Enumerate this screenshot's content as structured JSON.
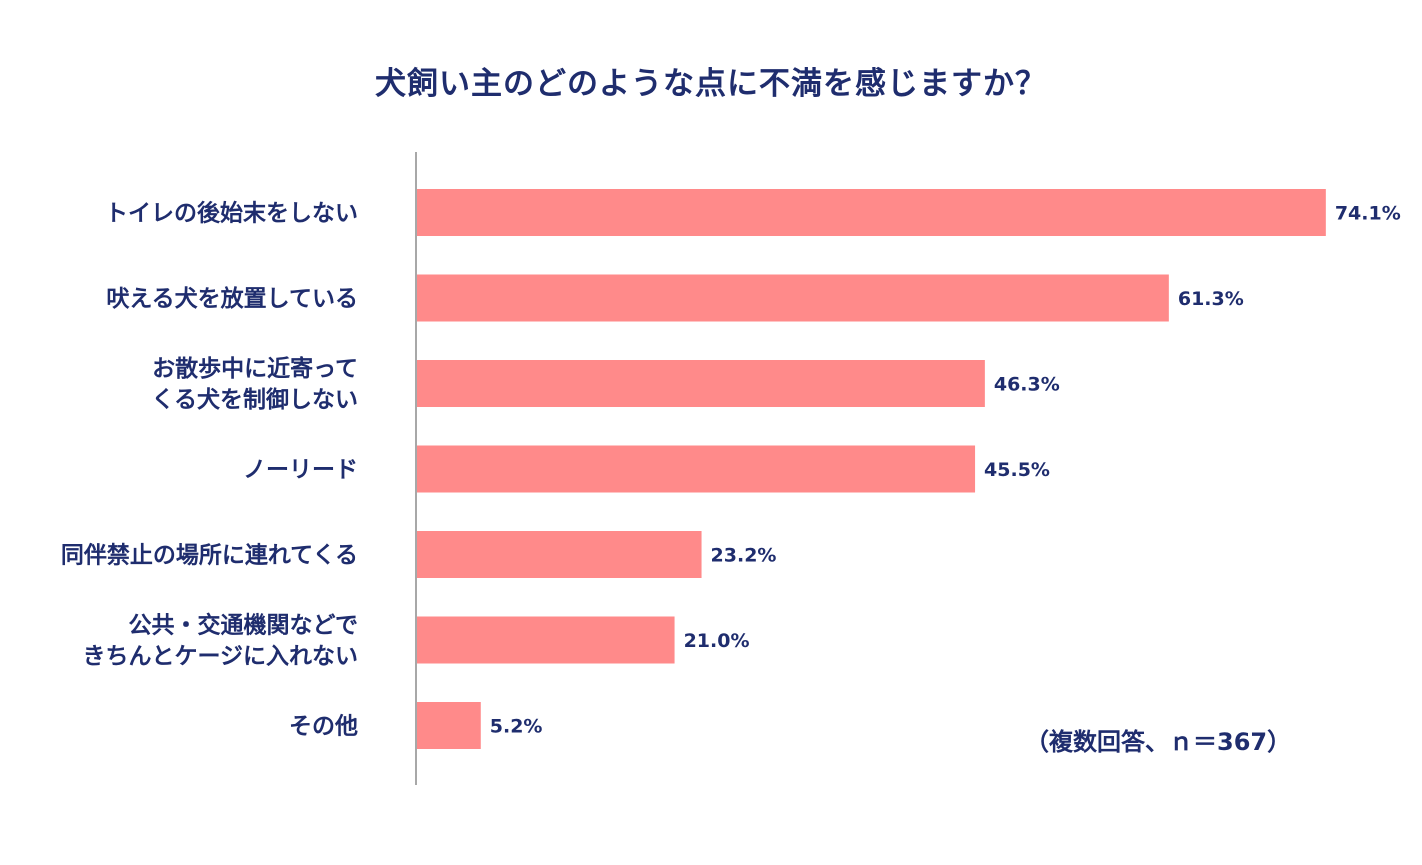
{
  "title": "犬飼い主のどのような点に不満を感じますか？",
  "note": "（複数回答、ｎ＝367）",
  "colors": {
    "bar": "#ff8a8a",
    "text": "#1f2d6e",
    "axis": "#8c8c8c"
  },
  "chart_data": {
    "type": "bar",
    "orientation": "horizontal",
    "categories": [
      [
        "トイレの後始末をしない"
      ],
      [
        "吠える犬を放置している"
      ],
      [
        "お散歩中に近寄って",
        "くる犬を制御しない"
      ],
      [
        "ノーリード"
      ],
      [
        "同伴禁止の場所に連れてくる"
      ],
      [
        "公共・交通機関などで",
        "きちんとケージに入れない"
      ],
      [
        "その他"
      ]
    ],
    "values": [
      74.1,
      61.3,
      46.3,
      45.5,
      23.2,
      21.0,
      5.2
    ],
    "value_labels": [
      "74.1%",
      "61.3%",
      "46.3%",
      "45.5%",
      "23.2%",
      "21.0%",
      "5.2%"
    ],
    "unit": "%",
    "xlim": [
      0,
      100
    ],
    "grid": false,
    "legend": "none"
  }
}
